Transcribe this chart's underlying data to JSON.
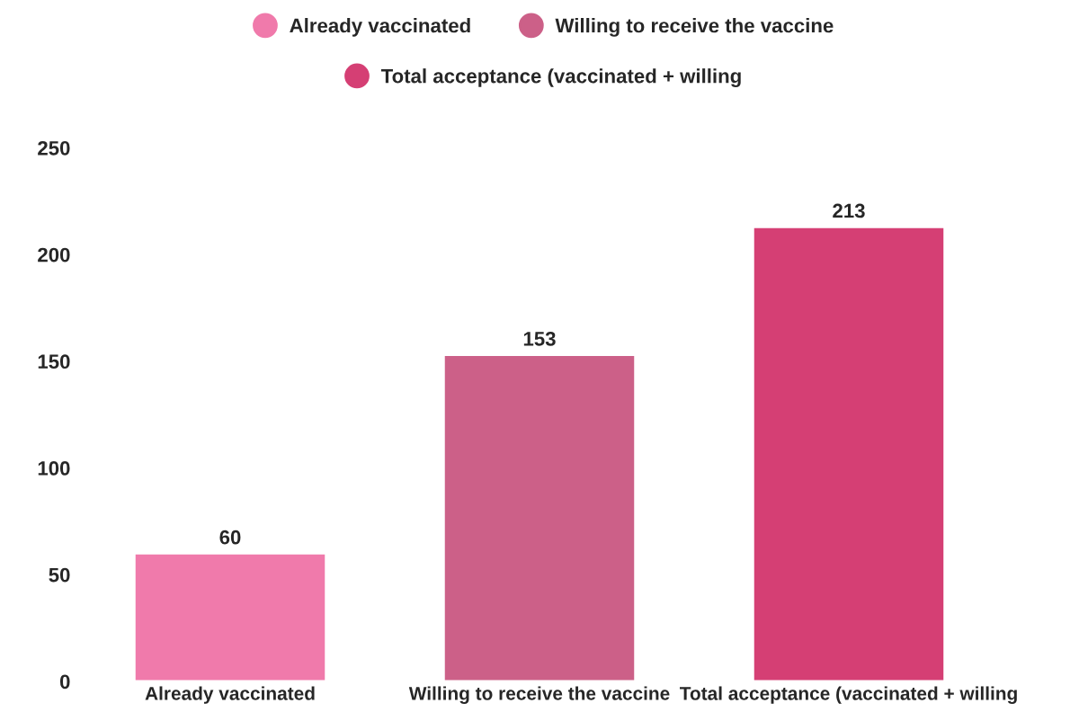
{
  "chart_data": {
    "type": "bar",
    "categories": [
      "Already vaccinated",
      "Willing to receive the vaccine",
      "Total acceptance (vaccinated + willing"
    ],
    "series": [
      {
        "name": "Already vaccinated",
        "color": "#f07aab",
        "values": [
          60,
          null,
          null
        ]
      },
      {
        "name": "Willing to receive the vaccine",
        "color": "#cc6088",
        "values": [
          null,
          153,
          null
        ]
      },
      {
        "name": "Total acceptance (vaccinated + willing",
        "color": "#d53f74",
        "values": [
          null,
          null,
          213
        ]
      }
    ],
    "ylim": [
      0,
      250
    ],
    "yticks": [
      0,
      50,
      100,
      150,
      200,
      250
    ],
    "grid": false,
    "legend": "top",
    "data_labels": true
  }
}
